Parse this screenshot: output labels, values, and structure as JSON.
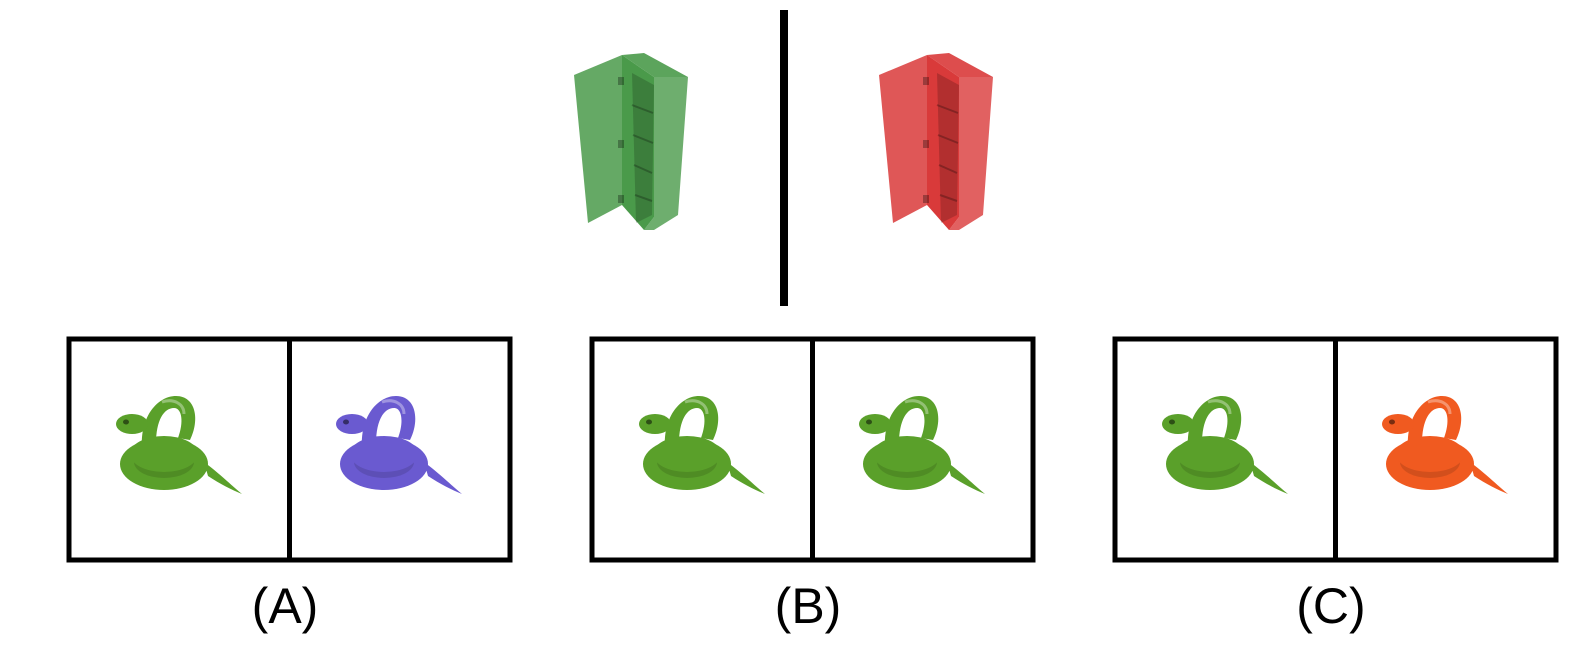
{
  "example": {
    "left_object": "cabinet-icon",
    "left_color": "#4a9a4a",
    "right_object": "cabinet-icon",
    "right_color": "#d93a3a"
  },
  "options": [
    {
      "label": "(A)",
      "left": {
        "object": "snake-icon",
        "color": "#5aa02a"
      },
      "right": {
        "object": "snake-icon",
        "color": "#6a5ad0"
      }
    },
    {
      "label": "(B)",
      "left": {
        "object": "snake-icon",
        "color": "#5aa02a"
      },
      "right": {
        "object": "snake-icon",
        "color": "#5aa02a"
      }
    },
    {
      "label": "(C)",
      "left": {
        "object": "snake-icon",
        "color": "#5aa02a"
      },
      "right": {
        "object": "snake-icon",
        "color": "#f05a20"
      }
    }
  ]
}
